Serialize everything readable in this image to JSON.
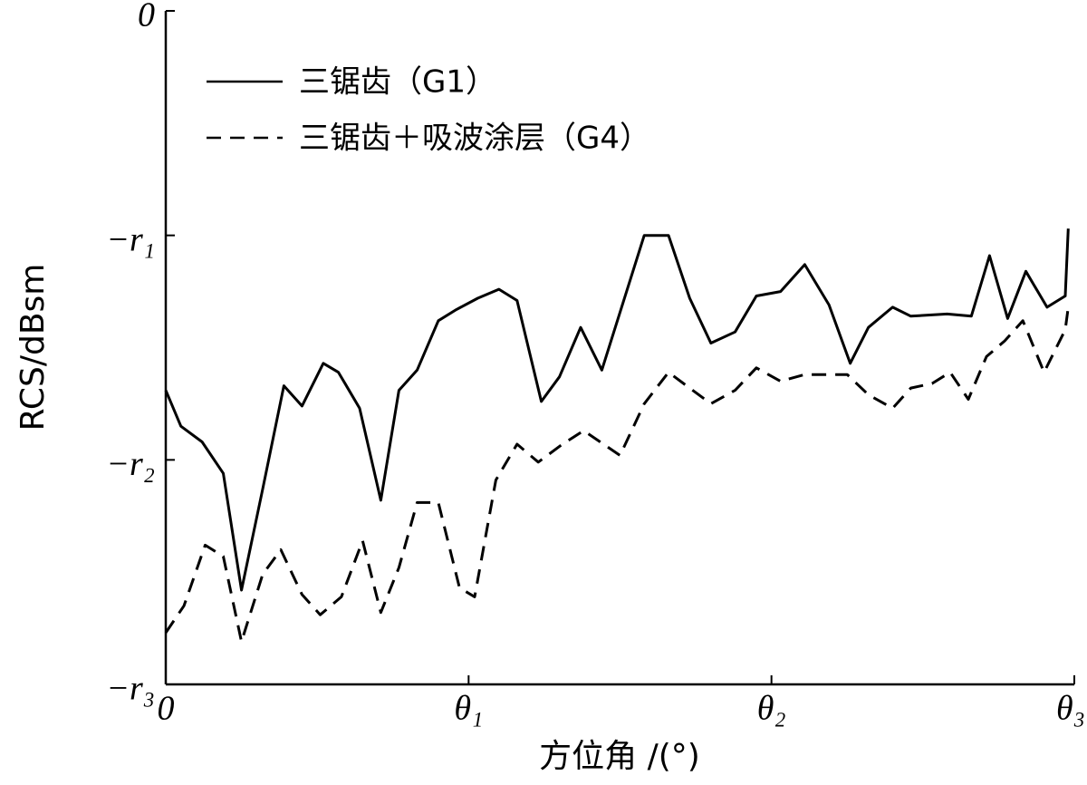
{
  "chart_data": {
    "type": "line",
    "x_label": "方位角 /(°)",
    "y_label": "RCS/dBsm",
    "xlim": [
      0,
      3
    ],
    "ylim": [
      -3,
      0
    ],
    "xticks": [
      0,
      {
        "value": 1,
        "label": "θ₁"
      },
      {
        "value": 2,
        "label": "θ₂"
      },
      {
        "value": 3,
        "label": "θ₃"
      }
    ],
    "yticks": [
      0,
      {
        "value": -1,
        "label": "−r₁"
      },
      {
        "value": -2,
        "label": "−r₂"
      },
      {
        "value": -3,
        "label": "−r₃"
      }
    ],
    "grid": false,
    "legend": "upper left",
    "series": [
      {
        "name": "三锯齿（G1）",
        "color": "#000000",
        "line_style": "solid",
        "x": [
          0,
          0.05,
          0.12,
          0.19,
          0.25,
          0.32,
          0.39,
          0.45,
          0.52,
          0.57,
          0.64,
          0.71,
          0.77,
          0.83,
          0.9,
          0.96,
          1.03,
          1.1,
          1.16,
          1.24,
          1.3,
          1.37,
          1.44,
          1.58,
          1.66,
          1.73,
          1.8,
          1.88,
          1.95,
          2.03,
          2.11,
          2.19,
          2.26,
          2.32,
          2.4,
          2.46,
          2.58,
          2.66,
          2.72,
          2.78,
          2.84,
          2.91,
          2.97,
          2.98
        ],
        "values": [
          -1.69,
          -1.85,
          -1.92,
          -2.06,
          -2.58,
          -2.13,
          -1.67,
          -1.76,
          -1.57,
          -1.61,
          -1.77,
          -2.18,
          -1.69,
          -1.6,
          -1.38,
          -1.33,
          -1.28,
          -1.24,
          -1.29,
          -1.74,
          -1.63,
          -1.41,
          -1.6,
          -1.0,
          -1.0,
          -1.28,
          -1.48,
          -1.43,
          -1.27,
          -1.25,
          -1.13,
          -1.31,
          -1.57,
          -1.41,
          -1.32,
          -1.36,
          -1.35,
          -1.36,
          -1.09,
          -1.37,
          -1.16,
          -1.32,
          -1.27,
          -0.97
        ]
      },
      {
        "name": "三锯齿＋吸波涂层（G4）",
        "color": "#000000",
        "line_style": "dashed",
        "x": [
          0,
          0.06,
          0.13,
          0.19,
          0.25,
          0.32,
          0.38,
          0.45,
          0.51,
          0.58,
          0.65,
          0.71,
          0.77,
          0.83,
          0.9,
          0.97,
          1.02,
          1.09,
          1.16,
          1.23,
          1.31,
          1.38,
          1.5,
          1.58,
          1.66,
          1.74,
          1.8,
          1.88,
          1.95,
          2.03,
          2.11,
          2.25,
          2.32,
          2.4,
          2.46,
          2.53,
          2.59,
          2.65,
          2.71,
          2.77,
          2.83,
          2.9,
          2.97,
          2.98
        ],
        "values": [
          -2.77,
          -2.65,
          -2.38,
          -2.43,
          -2.81,
          -2.51,
          -2.4,
          -2.6,
          -2.69,
          -2.61,
          -2.36,
          -2.68,
          -2.48,
          -2.19,
          -2.19,
          -2.57,
          -2.61,
          -2.09,
          -1.93,
          -2.01,
          -1.93,
          -1.87,
          -1.98,
          -1.75,
          -1.61,
          -1.69,
          -1.75,
          -1.69,
          -1.59,
          -1.65,
          -1.62,
          -1.62,
          -1.71,
          -1.77,
          -1.68,
          -1.66,
          -1.61,
          -1.73,
          -1.54,
          -1.47,
          -1.38,
          -1.61,
          -1.42,
          -1.32
        ]
      }
    ]
  }
}
